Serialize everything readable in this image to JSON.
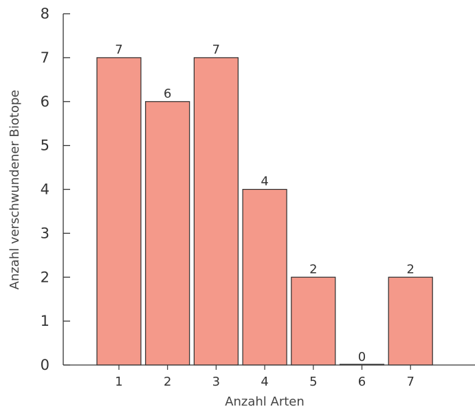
{
  "chart_data": {
    "type": "bar",
    "title": "",
    "xlabel": "Anzahl Arten",
    "ylabel": "Anzahl verschwundener Biotope",
    "categories": [
      "1",
      "2",
      "3",
      "4",
      "5",
      "6",
      "7"
    ],
    "values": [
      7,
      6,
      7,
      4,
      2,
      0,
      2
    ],
    "data_labels": [
      "7",
      "6",
      "7",
      "4",
      "2",
      "0",
      "2"
    ],
    "ylim": [
      0,
      8
    ],
    "yticks": [
      "0",
      "1",
      "2",
      "3",
      "4",
      "5",
      "6",
      "7",
      "8"
    ],
    "grid": false,
    "legend": "none",
    "colors": {
      "bar_fill": "#f4998a",
      "bar_stroke": "#2b2b2b",
      "axis": "#333333"
    }
  }
}
